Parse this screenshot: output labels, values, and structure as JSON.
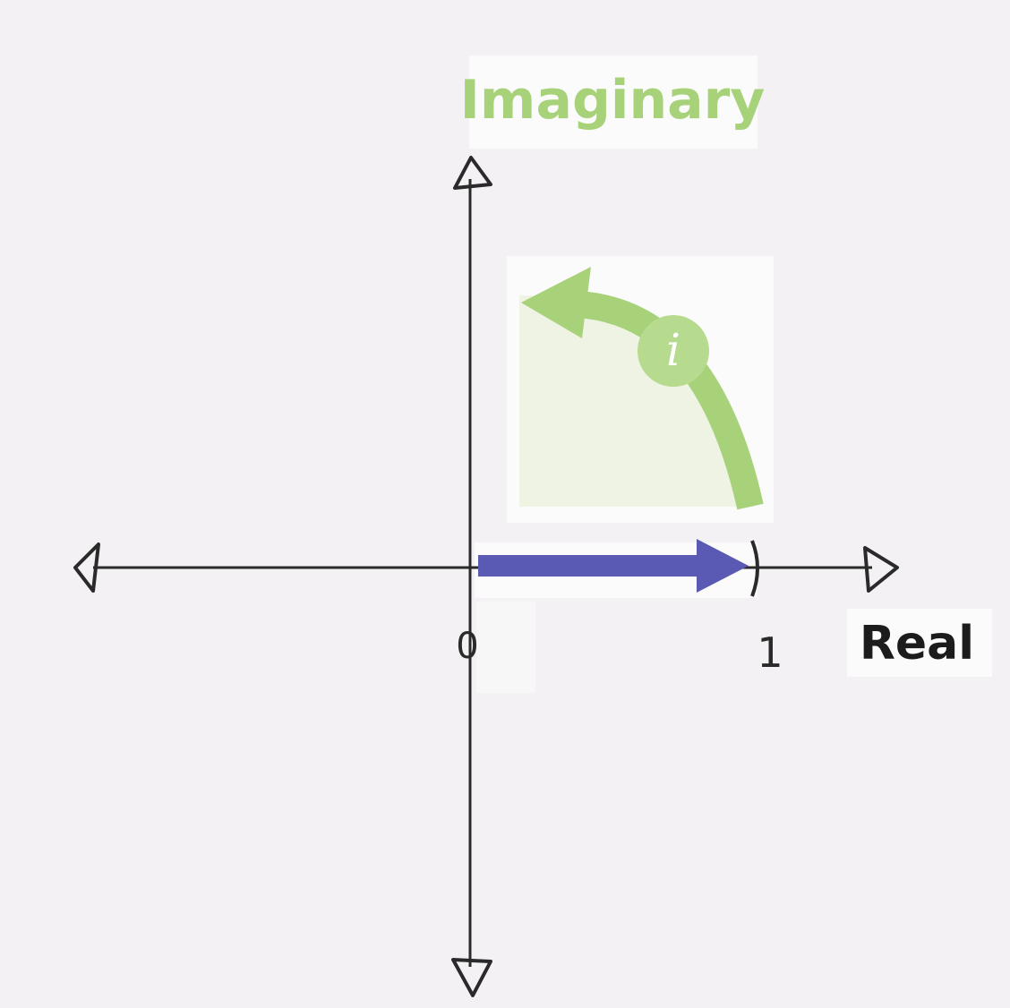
{
  "axes": {
    "vertical_label": "Imaginary",
    "horizontal_label": "Real"
  },
  "rotation": {
    "symbol": "i"
  },
  "ticks": {
    "origin": "0",
    "unit": "1"
  },
  "colors": {
    "background": "#f3f1f4",
    "axis": "#2a2a2a",
    "imaginary_green": "#a8d27a",
    "quarter_fill": "#eef3e4",
    "real_arrow_blue": "#5a5ab4"
  }
}
